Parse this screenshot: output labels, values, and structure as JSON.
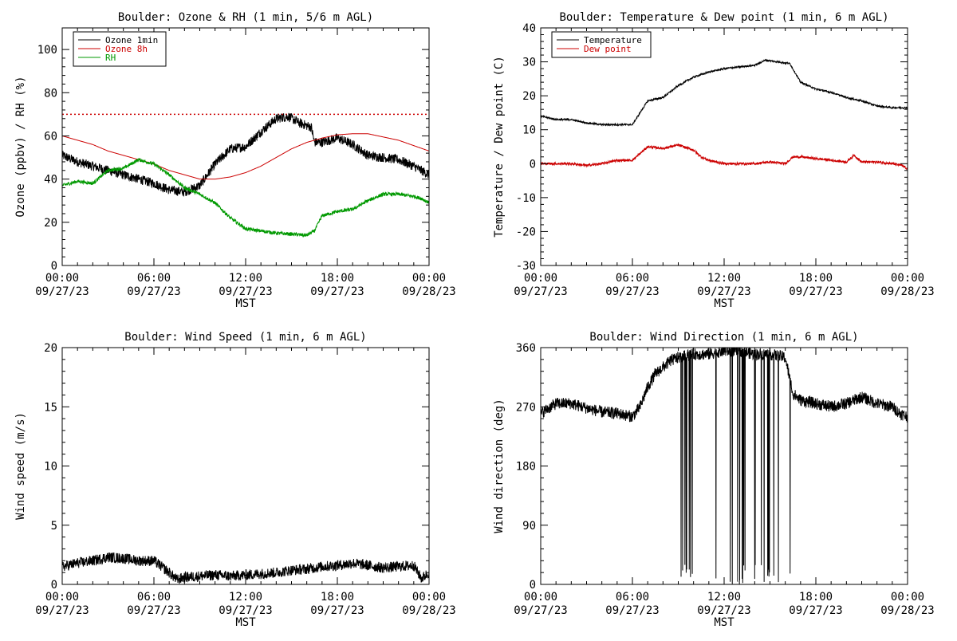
{
  "chart_data": [
    {
      "type": "line",
      "title": "Boulder: Ozone & RH (1 min, 5/6 m AGL)",
      "xlabel": "MST",
      "ylabel": "Ozone (ppbv) / RH (%)",
      "xlim": [
        0,
        24
      ],
      "ylim": [
        0,
        110
      ],
      "xticks": [
        {
          "time": "00:00",
          "date": "09/27/23"
        },
        {
          "time": "06:00",
          "date": "09/27/23"
        },
        {
          "time": "12:00",
          "date": "09/27/23"
        },
        {
          "time": "18:00",
          "date": "09/27/23"
        },
        {
          "time": "00:00",
          "date": "09/28/23"
        }
      ],
      "yticks": [
        0,
        20,
        40,
        60,
        80,
        100
      ],
      "reference_line": {
        "y": 70,
        "color": "#cc0000",
        "style": "dotted"
      },
      "legend": {
        "position": "top-left"
      },
      "series": [
        {
          "name": "Ozone 1min",
          "color": "#000000",
          "noise": 2.2,
          "x": [
            0,
            1,
            2,
            3,
            4,
            5,
            6,
            7,
            8,
            9,
            10,
            11,
            12,
            13,
            14,
            14.8,
            15.5,
            16.3,
            16.5,
            17,
            18,
            19,
            20,
            21,
            22,
            23,
            24
          ],
          "y": [
            51,
            48,
            46,
            44,
            42,
            40,
            38,
            35,
            34,
            37,
            47,
            54,
            55,
            62,
            68,
            69,
            66,
            64,
            57,
            57,
            59,
            56,
            51,
            50,
            49,
            46,
            42
          ]
        },
        {
          "name": "Ozone 8h",
          "color": "#cc0000",
          "noise": 0,
          "x": [
            0,
            1,
            2,
            3,
            4,
            5,
            6,
            7,
            8,
            9,
            10,
            11,
            12,
            13,
            14,
            15,
            16,
            17,
            18,
            19,
            20,
            21,
            22,
            23,
            24
          ],
          "y": [
            60,
            58,
            56,
            53,
            51,
            49,
            47,
            44,
            42,
            40,
            40,
            41,
            43,
            46,
            50,
            54,
            57,
            59,
            60.5,
            61,
            61,
            59.5,
            58,
            55.5,
            53
          ]
        },
        {
          "name": "RH",
          "color": "#009900",
          "noise": 0.8,
          "x": [
            0,
            1,
            2,
            3,
            4,
            5,
            6,
            7,
            8,
            9,
            10,
            11,
            12,
            13,
            14,
            15,
            16,
            16.5,
            17,
            18,
            19,
            19.5,
            20,
            21,
            22,
            23,
            23.5,
            24
          ],
          "y": [
            37,
            39,
            38,
            44,
            45,
            49,
            47,
            42,
            36,
            33,
            29,
            22,
            17,
            16,
            15,
            14.5,
            14,
            16,
            23,
            25,
            26,
            28,
            30,
            33,
            33,
            32,
            31,
            29
          ]
        }
      ]
    },
    {
      "type": "line",
      "title": "Boulder: Temperature & Dew point (1 min, 6 m AGL)",
      "xlabel": "MST",
      "ylabel": "Temperature / Dew point (C)",
      "xlim": [
        0,
        24
      ],
      "ylim": [
        -30,
        40
      ],
      "xticks": [
        {
          "time": "00:00",
          "date": "09/27/23"
        },
        {
          "time": "06:00",
          "date": "09/27/23"
        },
        {
          "time": "12:00",
          "date": "09/27/23"
        },
        {
          "time": "18:00",
          "date": "09/27/23"
        },
        {
          "time": "00:00",
          "date": "09/28/23"
        }
      ],
      "yticks": [
        -30,
        -20,
        -10,
        0,
        10,
        20,
        30,
        40
      ],
      "legend": {
        "position": "top-left"
      },
      "series": [
        {
          "name": "Temperature",
          "color": "#000000",
          "noise": 0.25,
          "x": [
            0,
            1,
            2,
            3,
            4,
            5,
            6,
            6.5,
            7,
            8,
            9,
            10,
            11,
            12,
            13,
            14,
            14.7,
            15.5,
            16.3,
            17,
            18,
            19,
            20,
            21,
            22,
            23,
            24
          ],
          "y": [
            14,
            13,
            13,
            12,
            11.5,
            11.5,
            11.5,
            15,
            18.5,
            19.5,
            23,
            25.5,
            27,
            28,
            28.5,
            29,
            30.5,
            30,
            29.5,
            24,
            22,
            21,
            19.5,
            18.5,
            17,
            16.5,
            16.5
          ]
        },
        {
          "name": "Dew point",
          "color": "#cc0000",
          "noise": 0.35,
          "x": [
            0,
            1,
            2,
            3,
            4,
            5,
            6,
            6.5,
            7,
            8,
            9,
            10,
            10.5,
            11,
            12,
            13,
            14,
            15,
            16,
            16.5,
            17,
            18,
            19,
            20,
            20.5,
            21,
            22,
            23,
            23.6,
            24
          ],
          "y": [
            0,
            0,
            0,
            -0.5,
            0,
            1,
            1,
            3,
            5,
            4.5,
            5.5,
            4,
            2,
            1,
            0,
            0,
            0,
            0.5,
            0,
            2,
            2,
            1.5,
            1,
            0.5,
            2.5,
            0.5,
            0.5,
            0,
            -0.5,
            -1.5
          ]
        }
      ]
    },
    {
      "type": "line",
      "title": "Boulder: Wind Speed (1 min, 6 m AGL)",
      "xlabel": "MST",
      "ylabel": "Wind speed (m/s)",
      "xlim": [
        0,
        24
      ],
      "ylim": [
        0,
        20
      ],
      "xticks": [
        {
          "time": "00:00",
          "date": "09/27/23"
        },
        {
          "time": "06:00",
          "date": "09/27/23"
        },
        {
          "time": "12:00",
          "date": "09/27/23"
        },
        {
          "time": "18:00",
          "date": "09/27/23"
        },
        {
          "time": "00:00",
          "date": "09/28/23"
        }
      ],
      "yticks": [
        0,
        5,
        10,
        15,
        20
      ],
      "series": [
        {
          "color": "#000000",
          "noise": 0.45,
          "x": [
            0,
            1,
            2,
            3,
            4,
            5,
            6,
            6.5,
            7,
            7.5,
            8,
            9,
            10,
            11,
            12,
            13,
            14,
            15,
            16,
            17,
            18,
            19,
            20,
            21,
            22,
            23,
            23.5,
            24
          ],
          "y": [
            1.5,
            1.8,
            2,
            2.3,
            2.2,
            2,
            2,
            1.5,
            1,
            0.4,
            0.6,
            0.7,
            0.8,
            0.7,
            0.8,
            0.9,
            1,
            1.2,
            1.3,
            1.5,
            1.6,
            1.8,
            1.6,
            1.4,
            1.5,
            1.6,
            0.5,
            1
          ]
        }
      ]
    },
    {
      "type": "line",
      "title": "Boulder: Wind Direction (1 min, 6 m AGL)",
      "xlabel": "MST",
      "ylabel": "Wind direction (deg)",
      "xlim": [
        0,
        24
      ],
      "ylim": [
        0,
        360
      ],
      "xticks": [
        {
          "time": "00:00",
          "date": "09/27/23"
        },
        {
          "time": "06:00",
          "date": "09/27/23"
        },
        {
          "time": "12:00",
          "date": "09/27/23"
        },
        {
          "time": "18:00",
          "date": "09/27/23"
        },
        {
          "time": "00:00",
          "date": "09/28/23"
        }
      ],
      "yticks": [
        0,
        90,
        180,
        270,
        360
      ],
      "series": [
        {
          "color": "#000000",
          "noise": 9,
          "wrap_between": [
            8.5,
            16.4
          ],
          "x": [
            0,
            1,
            2,
            3,
            4,
            5,
            6,
            6.5,
            7,
            7.5,
            8,
            8.5,
            9,
            10,
            11,
            12,
            13,
            14,
            15,
            16,
            16.5,
            17,
            18,
            19,
            20,
            21,
            22,
            23,
            23.5,
            24
          ],
          "y": [
            260,
            275,
            275,
            268,
            262,
            260,
            255,
            270,
            300,
            320,
            330,
            340,
            345,
            350,
            350,
            355,
            355,
            350,
            350,
            345,
            290,
            280,
            275,
            270,
            275,
            285,
            275,
            270,
            260,
            255
          ]
        }
      ]
    }
  ]
}
